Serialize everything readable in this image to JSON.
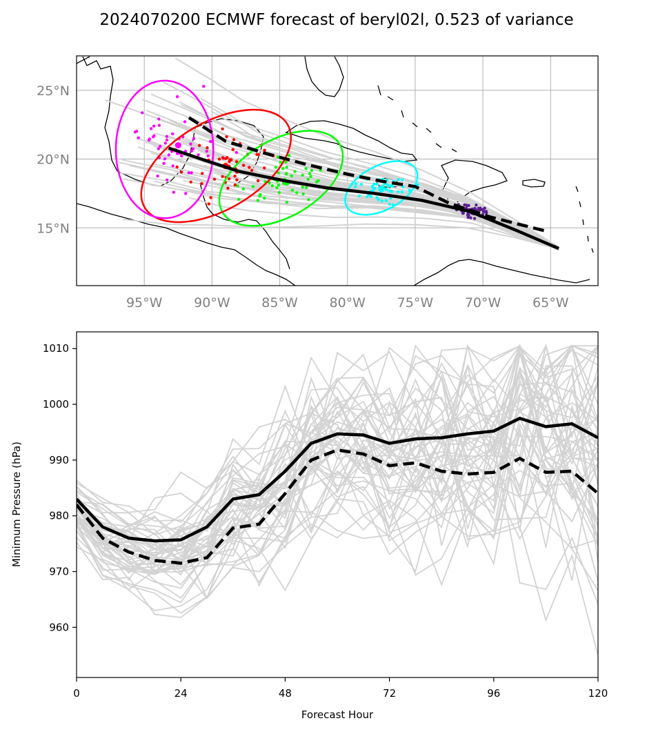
{
  "figure": {
    "title": "2024070200 ECMWF forecast of beryl02l, 0.523 of variance"
  },
  "chart_data": [
    {
      "type": "scatter",
      "panel": "map",
      "xlim": [
        -100,
        -61.5
      ],
      "ylim": [
        10.8,
        27.5
      ],
      "x_ticks": [
        -95,
        -90,
        -85,
        -80,
        -75,
        -70,
        -65
      ],
      "x_tick_labels": [
        "95°W",
        "90°W",
        "85°W",
        "80°W",
        "75°W",
        "70°W",
        "65°W"
      ],
      "y_ticks": [
        15,
        20,
        25
      ],
      "y_tick_labels": [
        "15°N",
        "20°N",
        "25°N"
      ],
      "grid": true,
      "series": [
        {
          "style": "solid-black",
          "lon": [
            -64.4,
            -67.5,
            -71.0,
            -74.5,
            -78.0,
            -81.5,
            -84.5,
            -88.0,
            -90.5,
            -93.2
          ],
          "lat": [
            13.5,
            14.8,
            16.2,
            17.0,
            17.5,
            17.9,
            18.4,
            19.1,
            19.9,
            20.8
          ]
        },
        {
          "style": "dashed-black",
          "lon": [
            -65.5,
            -69.5,
            -72.5,
            -75.0,
            -77.5,
            -80.0,
            -83.0,
            -86.0,
            -89.0,
            -92.0
          ],
          "lat": [
            14.8,
            15.8,
            16.8,
            18.0,
            18.4,
            18.9,
            19.6,
            20.4,
            21.3,
            23.2
          ]
        }
      ],
      "ellipses": [
        {
          "color": "#00ffff",
          "lon": -77.5,
          "lat": 17.9,
          "rx_deg": 2.9,
          "ry_deg": 1.6,
          "angle_deg": -28
        },
        {
          "color": "#00ff00",
          "lon": -84.9,
          "lat": 18.6,
          "rx_deg": 5.0,
          "ry_deg": 2.8,
          "angle_deg": -30
        },
        {
          "color": "#ff0000",
          "lon": -89.7,
          "lat": 19.5,
          "rx_deg": 6.1,
          "ry_deg": 3.2,
          "angle_deg": -30
        },
        {
          "color": "#ff00ff",
          "lon": -93.5,
          "lat": 20.7,
          "rx_deg": 3.6,
          "ry_deg": 5.0,
          "angle_deg": 0
        }
      ],
      "point_clouds": [
        {
          "color": "#5b1f8e",
          "lon": -70.8,
          "lat": 16.2,
          "spread_lon": 0.9,
          "spread_lat": 0.35,
          "count": 50
        },
        {
          "color": "#00ffff",
          "lon": -77.5,
          "lat": 17.8,
          "spread_lon": 1.6,
          "spread_lat": 0.8,
          "count": 50
        },
        {
          "color": "#00ff00",
          "lon": -84.5,
          "lat": 18.3,
          "spread_lon": 2.4,
          "spread_lat": 1.4,
          "count": 50
        },
        {
          "color": "#ff0000",
          "lon": -89.0,
          "lat": 19.5,
          "spread_lon": 2.8,
          "spread_lat": 2.0,
          "count": 50
        },
        {
          "color": "#ff00ff",
          "lon": -92.5,
          "lat": 21.0,
          "spread_lon": 2.8,
          "spread_lat": 2.5,
          "count": 50
        }
      ]
    },
    {
      "type": "line",
      "panel": "pressure",
      "xlabel": "Forecast Hour",
      "ylabel": "Minimum Pressure (hPa)",
      "xlim": [
        0,
        120
      ],
      "ylim": [
        951,
        1013
      ],
      "x_ticks": [
        0,
        24,
        48,
        72,
        96,
        120
      ],
      "y_ticks": [
        960,
        970,
        980,
        990,
        1000,
        1010
      ],
      "x": [
        0,
        6,
        12,
        18,
        24,
        30,
        36,
        42,
        48,
        54,
        60,
        66,
        72,
        78,
        84,
        90,
        96,
        102,
        108,
        114,
        120
      ],
      "series": [
        {
          "style": "solid-black",
          "values": [
            983,
            978,
            976,
            975.5,
            975.7,
            978,
            983,
            983.8,
            988,
            993,
            994.7,
            994.5,
            993,
            993.8,
            994,
            994.7,
            995.2,
            997.5,
            996,
            996.5,
            994
          ]
        },
        {
          "style": "dashed-black",
          "values": [
            982,
            976,
            973.5,
            972,
            971.5,
            972.5,
            977.8,
            978.5,
            984,
            990,
            991.8,
            991.1,
            989,
            989.5,
            988,
            987.5,
            987.8,
            990.3,
            987.8,
            988,
            984
          ]
        }
      ],
      "ensemble": {
        "color": "#d3d3d3",
        "count": 50
      }
    }
  ]
}
